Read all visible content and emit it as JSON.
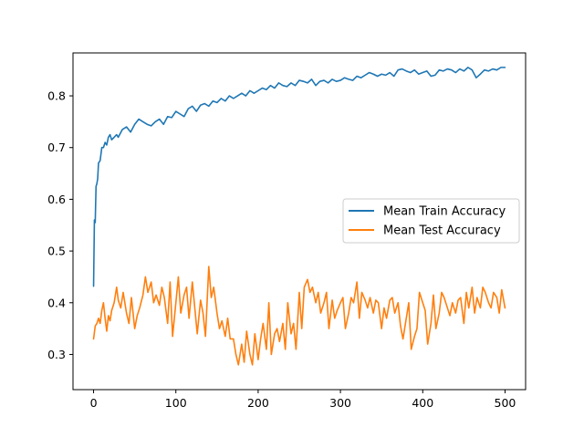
{
  "chart_data": {
    "type": "line",
    "title": "",
    "xlabel": "",
    "ylabel": "",
    "xlim": [
      -25,
      525
    ],
    "ylim": [
      0.232,
      0.883
    ],
    "grid": false,
    "legend_position": "center-right",
    "x_ticks": [
      0,
      100,
      200,
      300,
      400,
      500
    ],
    "x_tick_labels": [
      "0",
      "100",
      "200",
      "300",
      "400",
      "500"
    ],
    "y_ticks": [
      0.3,
      0.4,
      0.5,
      0.6,
      0.7,
      0.8
    ],
    "y_tick_labels": [
      "0.3",
      "0.4",
      "0.5",
      "0.6",
      "0.7",
      "0.8"
    ],
    "series": [
      {
        "name": "Mean Train Accuracy",
        "color": "#1f77b4",
        "x": [
          0,
          1,
          2,
          3,
          4,
          5,
          6,
          8,
          10,
          12,
          14,
          16,
          18,
          20,
          22,
          25,
          28,
          30,
          35,
          40,
          45,
          50,
          55,
          60,
          65,
          70,
          75,
          80,
          85,
          90,
          95,
          100,
          105,
          110,
          115,
          120,
          125,
          130,
          135,
          140,
          145,
          150,
          155,
          160,
          165,
          170,
          175,
          180,
          185,
          190,
          195,
          200,
          205,
          210,
          215,
          220,
          225,
          230,
          235,
          240,
          245,
          250,
          255,
          260,
          265,
          270,
          275,
          280,
          285,
          290,
          295,
          300,
          305,
          310,
          315,
          320,
          325,
          330,
          335,
          340,
          345,
          350,
          355,
          360,
          365,
          370,
          375,
          380,
          385,
          390,
          395,
          400,
          405,
          410,
          415,
          420,
          425,
          430,
          435,
          440,
          445,
          450,
          455,
          460,
          465,
          470,
          475,
          480,
          485,
          490,
          495,
          500
        ],
        "y": [
          0.432,
          0.56,
          0.555,
          0.625,
          0.63,
          0.64,
          0.67,
          0.675,
          0.7,
          0.7,
          0.71,
          0.705,
          0.72,
          0.725,
          0.715,
          0.72,
          0.725,
          0.72,
          0.735,
          0.74,
          0.73,
          0.745,
          0.755,
          0.75,
          0.745,
          0.742,
          0.75,
          0.755,
          0.745,
          0.76,
          0.758,
          0.77,
          0.765,
          0.76,
          0.775,
          0.78,
          0.77,
          0.782,
          0.785,
          0.78,
          0.79,
          0.787,
          0.795,
          0.79,
          0.8,
          0.795,
          0.8,
          0.805,
          0.8,
          0.81,
          0.805,
          0.81,
          0.815,
          0.812,
          0.82,
          0.815,
          0.825,
          0.82,
          0.818,
          0.825,
          0.82,
          0.83,
          0.828,
          0.825,
          0.832,
          0.82,
          0.828,
          0.83,
          0.825,
          0.832,
          0.828,
          0.83,
          0.835,
          0.832,
          0.83,
          0.838,
          0.835,
          0.84,
          0.845,
          0.842,
          0.838,
          0.842,
          0.84,
          0.845,
          0.838,
          0.85,
          0.852,
          0.848,
          0.845,
          0.85,
          0.842,
          0.845,
          0.848,
          0.838,
          0.84,
          0.85,
          0.848,
          0.852,
          0.85,
          0.845,
          0.852,
          0.848,
          0.855,
          0.85,
          0.835,
          0.842,
          0.85,
          0.848,
          0.852,
          0.85,
          0.855,
          0.855
        ]
      },
      {
        "name": "Mean Test Accuracy",
        "color": "#ff7f0e",
        "x": [
          0,
          2,
          4,
          6,
          8,
          10,
          12,
          14,
          16,
          18,
          20,
          22,
          25,
          28,
          30,
          33,
          36,
          40,
          43,
          46,
          50,
          53,
          56,
          60,
          63,
          66,
          70,
          73,
          76,
          80,
          83,
          86,
          90,
          93,
          96,
          100,
          103,
          106,
          110,
          113,
          116,
          120,
          123,
          126,
          130,
          133,
          136,
          140,
          143,
          146,
          150,
          153,
          156,
          160,
          163,
          166,
          170,
          173,
          176,
          180,
          183,
          186,
          190,
          193,
          196,
          200,
          203,
          206,
          210,
          213,
          216,
          220,
          223,
          226,
          230,
          233,
          236,
          240,
          243,
          246,
          250,
          253,
          256,
          260,
          263,
          266,
          270,
          273,
          276,
          280,
          283,
          286,
          290,
          293,
          296,
          300,
          303,
          306,
          310,
          313,
          316,
          320,
          323,
          326,
          330,
          333,
          336,
          340,
          343,
          346,
          350,
          353,
          356,
          360,
          363,
          366,
          370,
          373,
          376,
          380,
          383,
          386,
          390,
          393,
          396,
          400,
          403,
          406,
          410,
          413,
          416,
          420,
          423,
          426,
          430,
          433,
          436,
          440,
          443,
          446,
          450,
          453,
          456,
          460,
          463,
          466,
          470,
          473,
          476,
          480,
          483,
          486,
          490,
          493,
          496,
          500
        ],
        "y": [
          0.33,
          0.355,
          0.36,
          0.37,
          0.36,
          0.385,
          0.4,
          0.37,
          0.345,
          0.375,
          0.365,
          0.385,
          0.4,
          0.43,
          0.405,
          0.39,
          0.42,
          0.38,
          0.36,
          0.41,
          0.35,
          0.375,
          0.39,
          0.415,
          0.45,
          0.42,
          0.44,
          0.4,
          0.415,
          0.395,
          0.43,
          0.41,
          0.36,
          0.44,
          0.335,
          0.4,
          0.45,
          0.38,
          0.415,
          0.43,
          0.37,
          0.44,
          0.39,
          0.34,
          0.405,
          0.38,
          0.335,
          0.47,
          0.41,
          0.43,
          0.38,
          0.35,
          0.365,
          0.335,
          0.37,
          0.33,
          0.33,
          0.3,
          0.28,
          0.32,
          0.285,
          0.345,
          0.3,
          0.28,
          0.34,
          0.29,
          0.33,
          0.36,
          0.31,
          0.4,
          0.3,
          0.34,
          0.35,
          0.325,
          0.36,
          0.31,
          0.4,
          0.34,
          0.36,
          0.31,
          0.42,
          0.35,
          0.43,
          0.445,
          0.42,
          0.43,
          0.4,
          0.42,
          0.38,
          0.4,
          0.42,
          0.35,
          0.405,
          0.37,
          0.385,
          0.4,
          0.41,
          0.35,
          0.38,
          0.41,
          0.4,
          0.44,
          0.37,
          0.42,
          0.405,
          0.39,
          0.41,
          0.38,
          0.405,
          0.4,
          0.35,
          0.39,
          0.37,
          0.405,
          0.41,
          0.38,
          0.4,
          0.355,
          0.33,
          0.37,
          0.4,
          0.31,
          0.335,
          0.35,
          0.42,
          0.4,
          0.385,
          0.32,
          0.36,
          0.415,
          0.35,
          0.38,
          0.42,
          0.41,
          0.39,
          0.375,
          0.4,
          0.38,
          0.405,
          0.41,
          0.36,
          0.42,
          0.39,
          0.43,
          0.38,
          0.41,
          0.39,
          0.43,
          0.42,
          0.4,
          0.39,
          0.42,
          0.41,
          0.38,
          0.425,
          0.39
        ]
      }
    ]
  }
}
